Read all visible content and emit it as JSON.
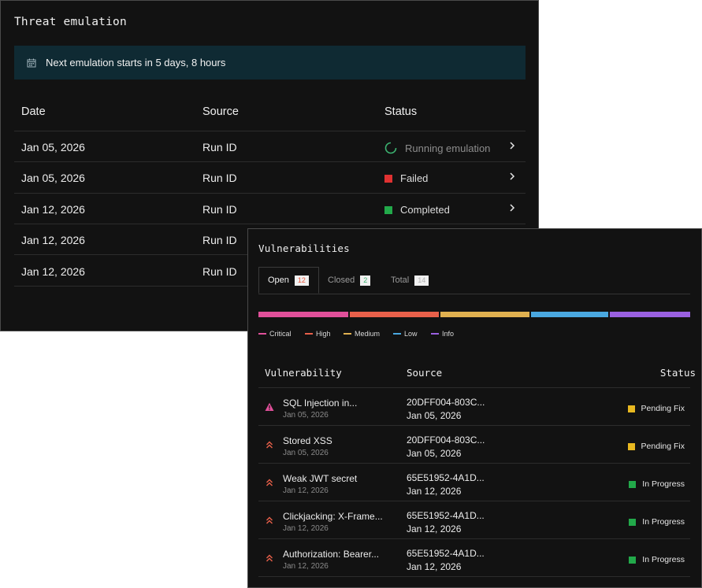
{
  "threat": {
    "title": "Threat emulation",
    "banner": "Next emulation starts in 5 days, 8 hours",
    "columns": {
      "date": "Date",
      "source": "Source",
      "status": "Status"
    },
    "rows": [
      {
        "date": "Jan 05, 2026",
        "source": "Run ID",
        "status": "Running emulation",
        "status_color": "#3cb371",
        "kind": "running"
      },
      {
        "date": "Jan 05, 2026",
        "source": "Run ID",
        "status": "Failed",
        "status_color": "#e03131",
        "kind": "square"
      },
      {
        "date": "Jan 12, 2026",
        "source": "Run ID",
        "status": "Completed",
        "status_color": "#22a94a",
        "kind": "square"
      },
      {
        "date": "Jan 12, 2026",
        "source": "Run ID",
        "status": "",
        "status_color": "",
        "kind": "none"
      },
      {
        "date": "Jan 12, 2026",
        "source": "Run ID",
        "status": "",
        "status_color": "",
        "kind": "none"
      }
    ]
  },
  "vuln": {
    "title": "Vulnerabilities",
    "tabs": [
      {
        "label": "Open",
        "count": "12",
        "count_color": "#e8553a"
      },
      {
        "label": "Closed",
        "count": "2",
        "count_color": "#3cb371"
      },
      {
        "label": "Total",
        "count": "14",
        "count_color": "#b0b0b0"
      }
    ],
    "legend": [
      {
        "label": "Critical",
        "color": "#e0509a"
      },
      {
        "label": "High",
        "color": "#e8604a"
      },
      {
        "label": "Medium",
        "color": "#e0b050"
      },
      {
        "label": "Low",
        "color": "#4aa8e0"
      },
      {
        "label": "Info",
        "color": "#9a60e0"
      }
    ],
    "columns": {
      "name": "Vulnerability",
      "source": "Source",
      "status": "Status"
    },
    "rows": [
      {
        "name": "SQL Injection in...",
        "date": "Jan 05, 2026",
        "source_id": "20DFF004-803C...",
        "source_date": "Jan 05, 2026",
        "status": "Pending Fix",
        "status_color": "#e8b820",
        "severity_icon": "warning-icon",
        "severity_color": "#e0509a"
      },
      {
        "name": "Stored XSS",
        "date": "Jan 05, 2026",
        "source_id": "20DFF004-803C...",
        "source_date": "Jan 05, 2026",
        "status": "Pending Fix",
        "status_color": "#e8b820",
        "severity_icon": "double-chevron-up-icon",
        "severity_color": "#e8604a"
      },
      {
        "name": "Weak JWT secret",
        "date": "Jan 12, 2026",
        "source_id": "65E51952-4A1D...",
        "source_date": "Jan 12, 2026",
        "status": "In Progress",
        "status_color": "#22a94a",
        "severity_icon": "double-chevron-up-icon",
        "severity_color": "#e8604a"
      },
      {
        "name": "Clickjacking: X-Frame...",
        "date": "Jan 12, 2026",
        "source_id": "65E51952-4A1D...",
        "source_date": "Jan 12, 2026",
        "status": "In Progress",
        "status_color": "#22a94a",
        "severity_icon": "double-chevron-up-icon",
        "severity_color": "#e8604a"
      },
      {
        "name": "Authorization: Bearer...",
        "date": "Jan 12, 2026",
        "source_id": "65E51952-4A1D...",
        "source_date": "Jan 12, 2026",
        "status": "In Progress",
        "status_color": "#22a94a",
        "severity_icon": "double-chevron-up-icon",
        "severity_color": "#e8604a"
      }
    ]
  }
}
